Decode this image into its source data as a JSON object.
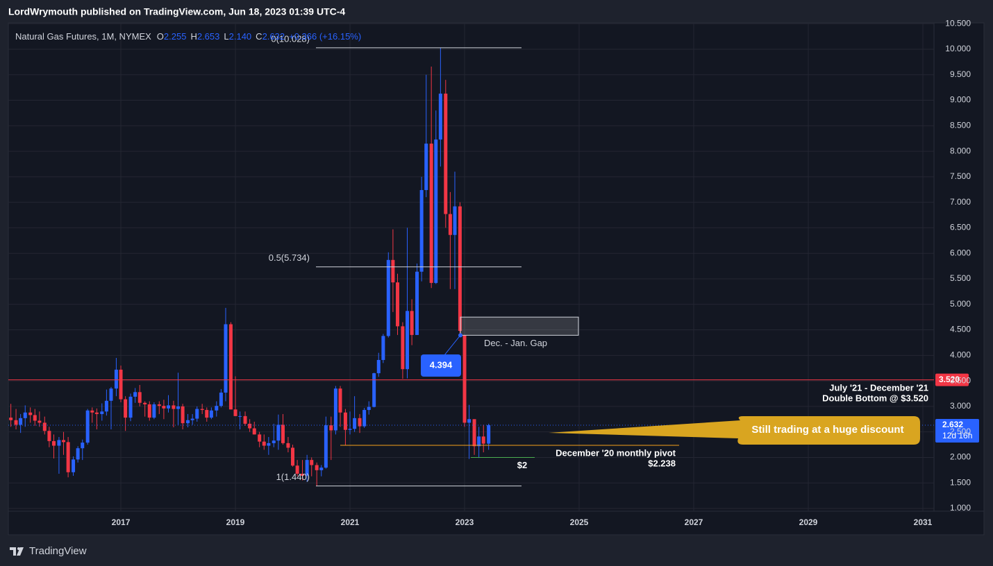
{
  "header": "LordWrymouth published on TradingView.com, Jun 18, 2023 01:39 UTC-4",
  "footer": "TradingView",
  "chart_data": {
    "type": "candlestick",
    "title": "Natural Gas Futures, 1M, NYMEX",
    "ohlc_legend": [
      {
        "key": "O",
        "value": "2.255"
      },
      {
        "key": "H",
        "value": "2.653"
      },
      {
        "key": "L",
        "value": "2.140"
      },
      {
        "key": "C",
        "value": "2.632"
      }
    ],
    "change": "+0.366 (+16.15%)",
    "up_color": "#2962ff",
    "down_color": "#f23645",
    "x": [
      2015.08,
      2015.17,
      2015.25,
      2015.33,
      2015.42,
      2015.5,
      2015.58,
      2015.67,
      2015.75,
      2015.83,
      2015.92,
      2016.0,
      2016.08,
      2016.17,
      2016.25,
      2016.33,
      2016.42,
      2016.5,
      2016.58,
      2016.67,
      2016.75,
      2016.83,
      2016.92,
      2017.0,
      2017.08,
      2017.17,
      2017.25,
      2017.33,
      2017.42,
      2017.5,
      2017.58,
      2017.67,
      2017.75,
      2017.83,
      2017.92,
      2018.0,
      2018.08,
      2018.17,
      2018.25,
      2018.33,
      2018.42,
      2018.5,
      2018.58,
      2018.67,
      2018.75,
      2018.83,
      2018.92,
      2019.0,
      2019.08,
      2019.17,
      2019.25,
      2019.33,
      2019.42,
      2019.5,
      2019.58,
      2019.67,
      2019.75,
      2019.83,
      2019.92,
      2020.0,
      2020.08,
      2020.17,
      2020.25,
      2020.33,
      2020.42,
      2020.5,
      2020.58,
      2020.67,
      2020.75,
      2020.83,
      2020.92,
      2021.0,
      2021.08,
      2021.17,
      2021.25,
      2021.33,
      2021.42,
      2021.5,
      2021.58,
      2021.67,
      2021.75,
      2021.83,
      2021.92,
      2022.0,
      2022.08,
      2022.17,
      2022.25,
      2022.33,
      2022.42,
      2022.5,
      2022.58,
      2022.67,
      2022.75,
      2022.83,
      2022.92,
      2023.0,
      2023.08,
      2023.17,
      2023.25,
      2023.33,
      2023.42
    ],
    "open": [
      2.78,
      2.73,
      2.64,
      2.77,
      2.88,
      2.83,
      2.72,
      2.68,
      2.52,
      2.32,
      2.23,
      2.34,
      2.3,
      1.71,
      1.96,
      2.18,
      2.29,
      2.92,
      2.88,
      2.85,
      2.9,
      3.11,
      3.35,
      3.72,
      3.14,
      2.78,
      3.19,
      3.28,
      3.07,
      3.04,
      2.78,
      3.04,
      3.01,
      2.96,
      3.02,
      2.95,
      3.0,
      2.67,
      2.73,
      2.76,
      2.95,
      2.93,
      2.78,
      2.92,
      3.01,
      3.27,
      4.61,
      2.94,
      2.81,
      2.81,
      2.66,
      2.57,
      2.45,
      2.31,
      2.23,
      2.28,
      2.33,
      2.64,
      2.28,
      2.19,
      1.84,
      1.68,
      1.64,
      1.95,
      1.85,
      1.75,
      1.8,
      2.63,
      2.53,
      3.35,
      2.88,
      2.54,
      2.56,
      2.77,
      2.61,
      2.93,
      2.99,
      3.65,
      3.91,
      4.38,
      5.87,
      5.43,
      4.57,
      3.73,
      4.87,
      4.4,
      5.64,
      7.24,
      8.15,
      5.42,
      8.23,
      9.13,
      6.77,
      6.36,
      6.92,
      4.394,
      2.68,
      2.75,
      2.22,
      2.41,
      2.27
    ],
    "high": [
      3.05,
      2.95,
      2.85,
      3.02,
      2.98,
      2.95,
      2.9,
      2.8,
      2.6,
      2.45,
      2.4,
      2.5,
      2.4,
      2.02,
      2.22,
      2.35,
      2.95,
      2.98,
      2.96,
      3.06,
      3.33,
      3.38,
      3.95,
      3.8,
      3.2,
      3.25,
      3.36,
      3.42,
      3.1,
      3.1,
      3.08,
      3.1,
      3.13,
      3.22,
      3.11,
      3.66,
      3.05,
      2.85,
      2.85,
      3.0,
      3.05,
      2.98,
      2.98,
      3.1,
      3.34,
      4.93,
      4.65,
      3.59,
      2.9,
      2.9,
      2.75,
      2.7,
      2.5,
      2.45,
      2.4,
      2.66,
      2.84,
      2.85,
      2.4,
      2.25,
      1.95,
      1.95,
      2.05,
      2.0,
      1.9,
      1.85,
      2.8,
      2.8,
      3.4,
      3.4,
      2.95,
      2.9,
      3.2,
      2.85,
      2.97,
      3.1,
      3.66,
      4.05,
      4.42,
      6.02,
      6.47,
      5.6,
      4.65,
      6.5,
      5.1,
      5.8,
      7.5,
      9.5,
      9.66,
      8.8,
      10.03,
      9.4,
      7.2,
      7.6,
      7.0,
      4.4,
      3.03,
      2.75,
      2.6,
      2.64,
      2.66
    ],
    "low": [
      2.6,
      2.55,
      2.48,
      2.6,
      2.68,
      2.62,
      2.6,
      2.45,
      2.2,
      1.98,
      1.68,
      2.05,
      1.61,
      1.64,
      1.9,
      1.95,
      2.25,
      2.68,
      2.55,
      2.72,
      2.82,
      2.55,
      3.2,
      3.08,
      2.52,
      2.71,
      3.07,
      3.0,
      2.8,
      2.72,
      2.75,
      2.85,
      2.75,
      2.88,
      2.59,
      2.64,
      2.55,
      2.59,
      2.64,
      2.7,
      2.85,
      2.7,
      2.75,
      2.8,
      2.98,
      3.1,
      2.94,
      2.81,
      2.55,
      2.62,
      2.5,
      2.45,
      2.2,
      2.15,
      2.05,
      2.2,
      2.15,
      2.25,
      2.1,
      1.82,
      1.63,
      1.55,
      1.52,
      1.63,
      1.44,
      1.63,
      1.78,
      1.95,
      2.45,
      2.6,
      2.24,
      2.45,
      2.5,
      2.48,
      2.58,
      2.84,
      2.98,
      3.58,
      3.85,
      4.35,
      4.85,
      4.4,
      3.54,
      3.55,
      4.2,
      4.4,
      5.45,
      7.1,
      5.32,
      5.4,
      7.7,
      6.5,
      5.3,
      5.3,
      4.4,
      2.6,
      1.97,
      2.05,
      1.99,
      2.1,
      2.15
    ],
    "close": [
      2.73,
      2.64,
      2.77,
      2.88,
      2.83,
      2.72,
      2.68,
      2.52,
      2.32,
      2.23,
      2.34,
      2.3,
      1.71,
      1.96,
      2.18,
      2.29,
      2.92,
      2.88,
      2.85,
      2.9,
      3.11,
      3.35,
      3.72,
      3.14,
      2.78,
      3.19,
      3.28,
      3.07,
      3.04,
      2.78,
      3.04,
      3.01,
      2.96,
      3.02,
      2.95,
      3.0,
      2.67,
      2.73,
      2.76,
      2.95,
      2.93,
      2.78,
      2.92,
      3.01,
      3.27,
      4.61,
      2.94,
      2.81,
      2.81,
      2.66,
      2.57,
      2.45,
      2.31,
      2.23,
      2.28,
      2.33,
      2.64,
      2.28,
      2.19,
      1.84,
      1.68,
      1.64,
      1.95,
      1.85,
      1.75,
      1.8,
      2.63,
      2.53,
      3.35,
      2.88,
      2.54,
      2.56,
      2.77,
      2.61,
      2.93,
      2.99,
      3.65,
      3.91,
      4.38,
      5.87,
      5.43,
      4.57,
      3.73,
      4.87,
      4.4,
      5.64,
      7.24,
      8.15,
      5.42,
      8.23,
      9.13,
      6.77,
      6.36,
      6.92,
      4.48,
      2.68,
      2.75,
      2.22,
      2.41,
      2.27,
      2.632
    ],
    "xlim": [
      2015.036,
      2031.194
    ],
    "xticks": [
      2017,
      2019,
      2021,
      2023,
      2025,
      2027,
      2029,
      2031
    ],
    "ylim": [
      0.946,
      10.516
    ],
    "yticks": [
      {
        "value": 1,
        "label": "1.000"
      },
      {
        "value": 1.5,
        "label": "1.500"
      },
      {
        "value": 2,
        "label": "2.000"
      },
      {
        "value": 2.5,
        "label": "2.500"
      },
      {
        "value": 3,
        "label": "3.000"
      },
      {
        "value": 3.5,
        "label": "3.500"
      },
      {
        "value": 4,
        "label": "4.000"
      },
      {
        "value": 4.5,
        "label": "4.500"
      },
      {
        "value": 5,
        "label": "5.000"
      },
      {
        "value": 5.5,
        "label": "5.500"
      },
      {
        "value": 6,
        "label": "6.000"
      },
      {
        "value": 6.5,
        "label": "6.500"
      },
      {
        "value": 7,
        "label": "7.000"
      },
      {
        "value": 7.5,
        "label": "7.500"
      },
      {
        "value": 8,
        "label": "8.000"
      },
      {
        "value": 8.5,
        "label": "8.500"
      },
      {
        "value": 9,
        "label": "9.000"
      },
      {
        "value": 9.5,
        "label": "9.500"
      },
      {
        "value": 10,
        "label": "10.000"
      },
      {
        "value": 10.5,
        "label": "10.500"
      }
    ],
    "grid": true,
    "fib_levels": [
      {
        "label": "0(10.028)",
        "value": 10.028
      },
      {
        "label": "0.5(5.734)",
        "value": 5.734
      },
      {
        "label": "1(1.440)",
        "value": 1.44
      }
    ],
    "resistance": {
      "value": 3.52,
      "label": "3.520",
      "color": "#f23645",
      "note": [
        "July '21 - December '21",
        "Double Bottom @ $3.520"
      ]
    },
    "pivot": {
      "value": 2.238,
      "color": "#f7a21b",
      "note": [
        "December '20 monthly pivot",
        "$2.238"
      ]
    },
    "support": {
      "value": 2,
      "color": "#4caf50",
      "label": "$2"
    },
    "gap": {
      "label": "Dec. - Jan. Gap",
      "top": 4.75,
      "bottom": 4.394
    },
    "gap_marker": {
      "value": 4.394,
      "label": "4.394"
    },
    "current_price": {
      "value": 2.632,
      "label": "2.632",
      "countdown": "12d 16h"
    },
    "callout": "Still trading at a huge discount"
  }
}
